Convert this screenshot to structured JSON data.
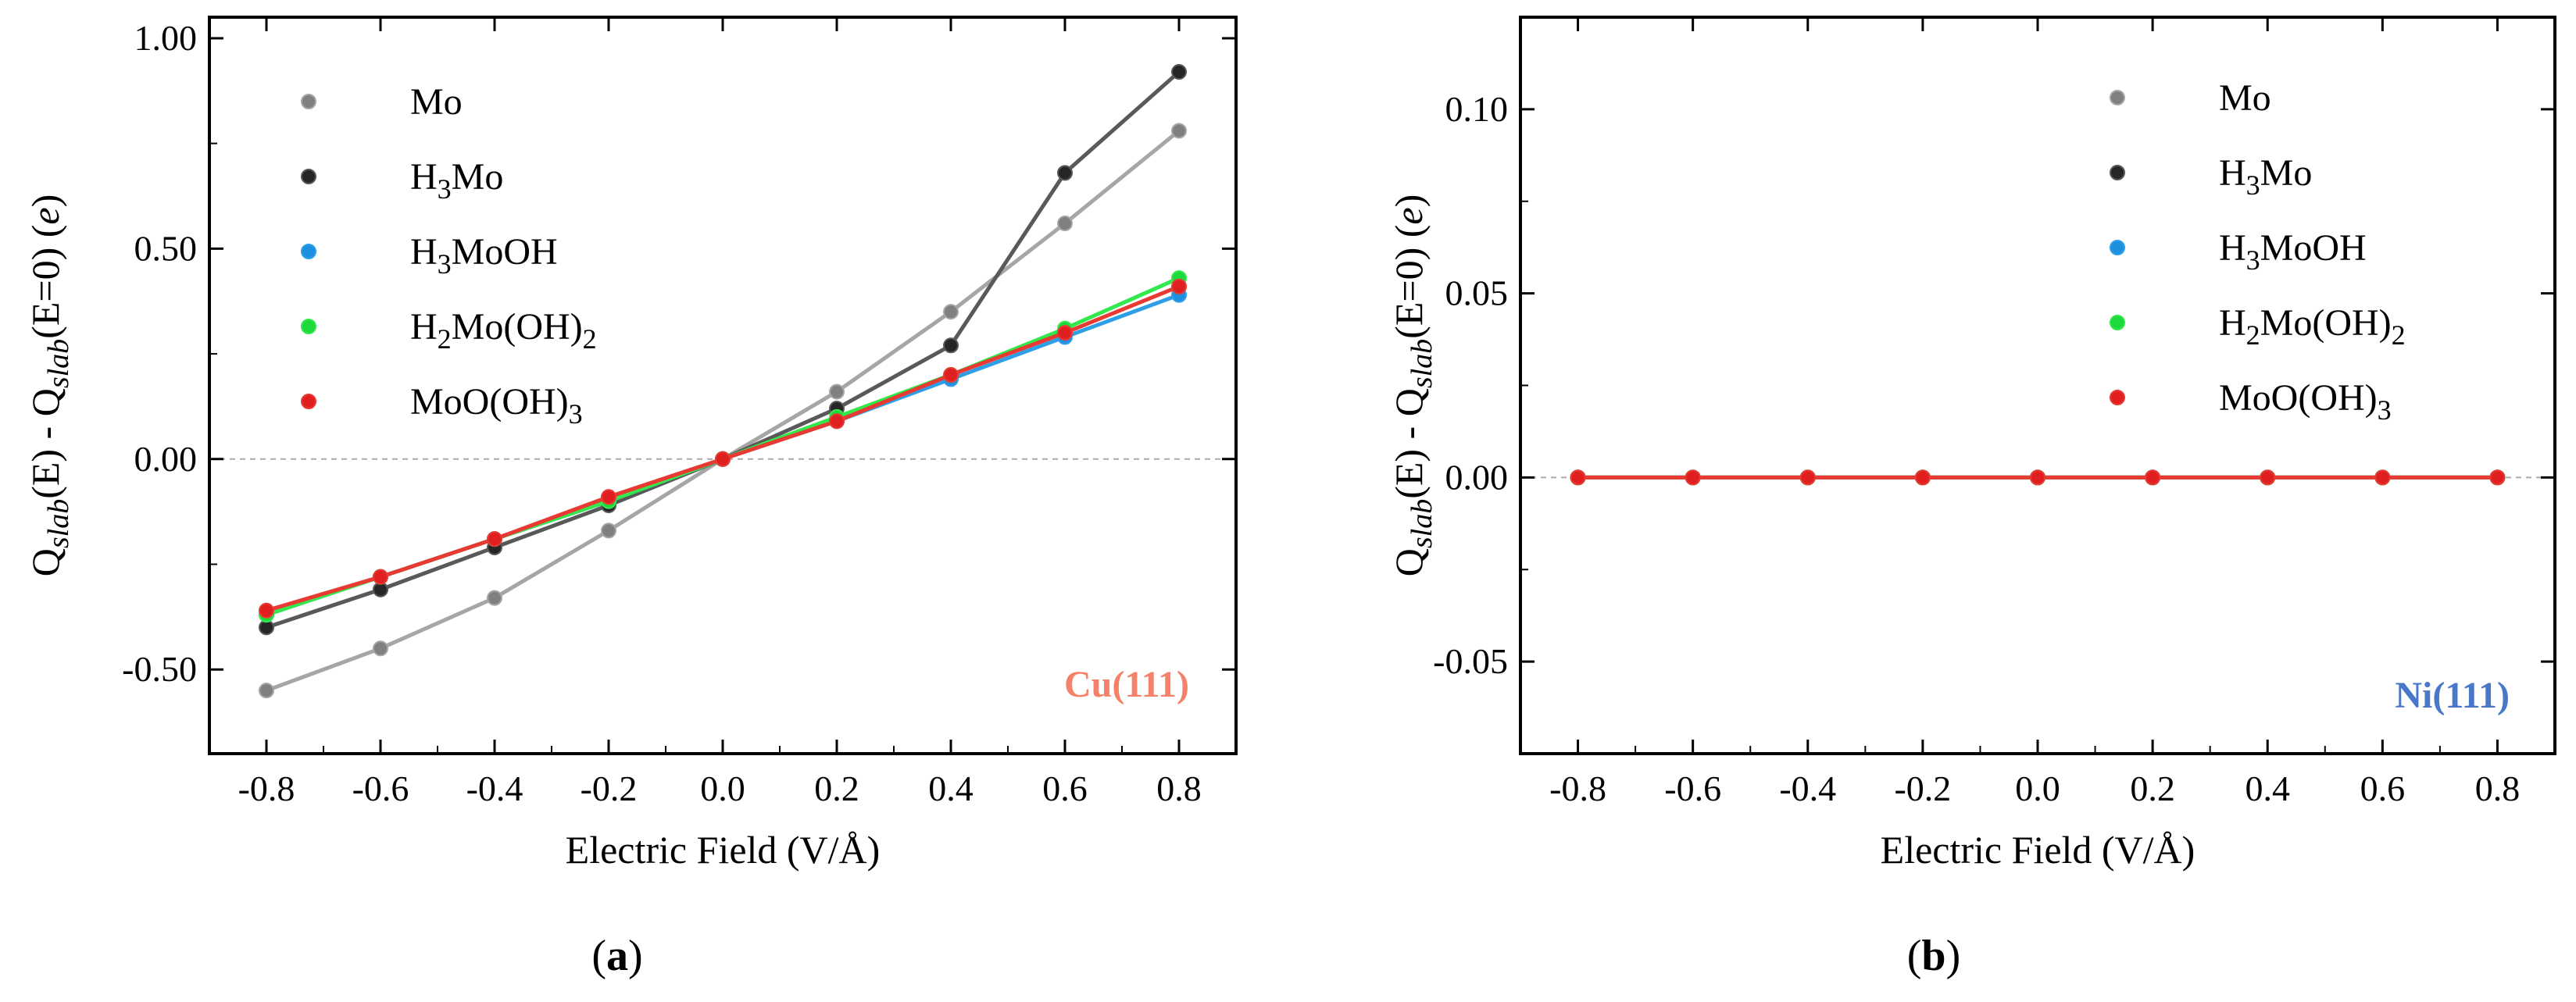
{
  "chart_data": [
    {
      "type": "line",
      "panel_label": "(a)",
      "panel_letter": "a",
      "surface_label": "Cu(111)",
      "surface_color": "#f4826a",
      "xlabel": "Electric Field (V/Å)",
      "ylabel": "Q_slab(E) - Q_slab(E=0) (e)",
      "xlim": [
        -0.9,
        0.9
      ],
      "ylim": [
        -0.7,
        1.05
      ],
      "xticks": [
        -0.8,
        -0.6,
        -0.4,
        -0.2,
        0.0,
        0.2,
        0.4,
        0.6,
        0.8
      ],
      "xtick_labels": [
        "-0.8",
        "-0.6",
        "-0.4",
        "-0.2",
        "0.0",
        "0.2",
        "0.4",
        "0.6",
        "0.8"
      ],
      "yticks": [
        -0.5,
        0.0,
        0.5,
        1.0
      ],
      "ytick_labels": [
        "-0.50",
        "0.00",
        "0.50",
        "1.00"
      ],
      "zero_line": true,
      "legend_position": "top-left",
      "x": [
        -0.8,
        -0.6,
        -0.4,
        -0.2,
        0.0,
        0.2,
        0.4,
        0.6,
        0.8
      ],
      "series": [
        {
          "name": "Mo",
          "color": "#a6a6a6",
          "marker_color": "#808080",
          "values": [
            -0.55,
            -0.45,
            -0.33,
            -0.17,
            0.0,
            0.16,
            0.35,
            0.56,
            0.78
          ]
        },
        {
          "name": "H3Mo",
          "color": "#595959",
          "marker_color": "#262626",
          "values": [
            -0.4,
            -0.31,
            -0.21,
            -0.11,
            0.0,
            0.12,
            0.27,
            0.68,
            0.92
          ]
        },
        {
          "name": "H3MoOH",
          "color": "#2e9fe6",
          "marker_color": "#1f8fe0",
          "values": [
            -0.37,
            -0.28,
            -0.19,
            -0.1,
            0.0,
            0.09,
            0.19,
            0.29,
            0.39
          ]
        },
        {
          "name": "H2Mo(OH)2",
          "color": "#33e84c",
          "marker_color": "#1ed93a",
          "values": [
            -0.37,
            -0.28,
            -0.19,
            -0.1,
            0.0,
            0.1,
            0.2,
            0.31,
            0.43
          ]
        },
        {
          "name": "MoO(OH)3",
          "color": "#e83a33",
          "marker_color": "#e02020",
          "values": [
            -0.36,
            -0.28,
            -0.19,
            -0.09,
            0.0,
            0.09,
            0.2,
            0.3,
            0.41
          ]
        }
      ]
    },
    {
      "type": "line",
      "panel_label": "(b)",
      "panel_letter": "b",
      "surface_label": "Ni(111)",
      "surface_color": "#4a78c8",
      "xlabel": "Electric Field (V/Å)",
      "ylabel": "Q_slab(E) - Q_slab(E=0) (e)",
      "xlim": [
        -0.9,
        0.9
      ],
      "ylim": [
        -0.075,
        0.125
      ],
      "xticks": [
        -0.8,
        -0.6,
        -0.4,
        -0.2,
        0.0,
        0.2,
        0.4,
        0.6,
        0.8
      ],
      "xtick_labels": [
        "-0.8",
        "-0.6",
        "-0.4",
        "-0.2",
        "0.0",
        "0.2",
        "0.4",
        "0.6",
        "0.8"
      ],
      "yticks": [
        -0.05,
        0.0,
        0.05,
        0.1
      ],
      "ytick_labels": [
        "-0.05",
        "0.00",
        "0.05",
        "0.10"
      ],
      "zero_line": true,
      "legend_position": "top-right",
      "x": [
        -0.8,
        -0.6,
        -0.4,
        -0.2,
        0.0,
        0.2,
        0.4,
        0.6,
        0.8
      ],
      "series": [
        {
          "name": "Mo",
          "color": "#a6a6a6",
          "marker_color": "#808080",
          "values": [
            0,
            0,
            0,
            0,
            0,
            0,
            0,
            0,
            0
          ]
        },
        {
          "name": "H3Mo",
          "color": "#595959",
          "marker_color": "#262626",
          "values": [
            0,
            0,
            0,
            0,
            0,
            0,
            0,
            0,
            0
          ]
        },
        {
          "name": "H3MoOH",
          "color": "#2e9fe6",
          "marker_color": "#1f8fe0",
          "values": [
            0,
            0,
            0,
            0,
            0,
            0,
            0,
            0,
            0
          ]
        },
        {
          "name": "H2Mo(OH)2",
          "color": "#33e84c",
          "marker_color": "#1ed93a",
          "values": [
            0,
            0,
            0,
            0,
            0,
            0,
            0,
            0,
            0
          ]
        },
        {
          "name": "MoO(OH)3",
          "color": "#e83a33",
          "marker_color": "#e02020",
          "values": [
            0,
            0,
            0,
            0,
            0,
            0,
            0,
            0,
            0
          ]
        }
      ]
    }
  ]
}
